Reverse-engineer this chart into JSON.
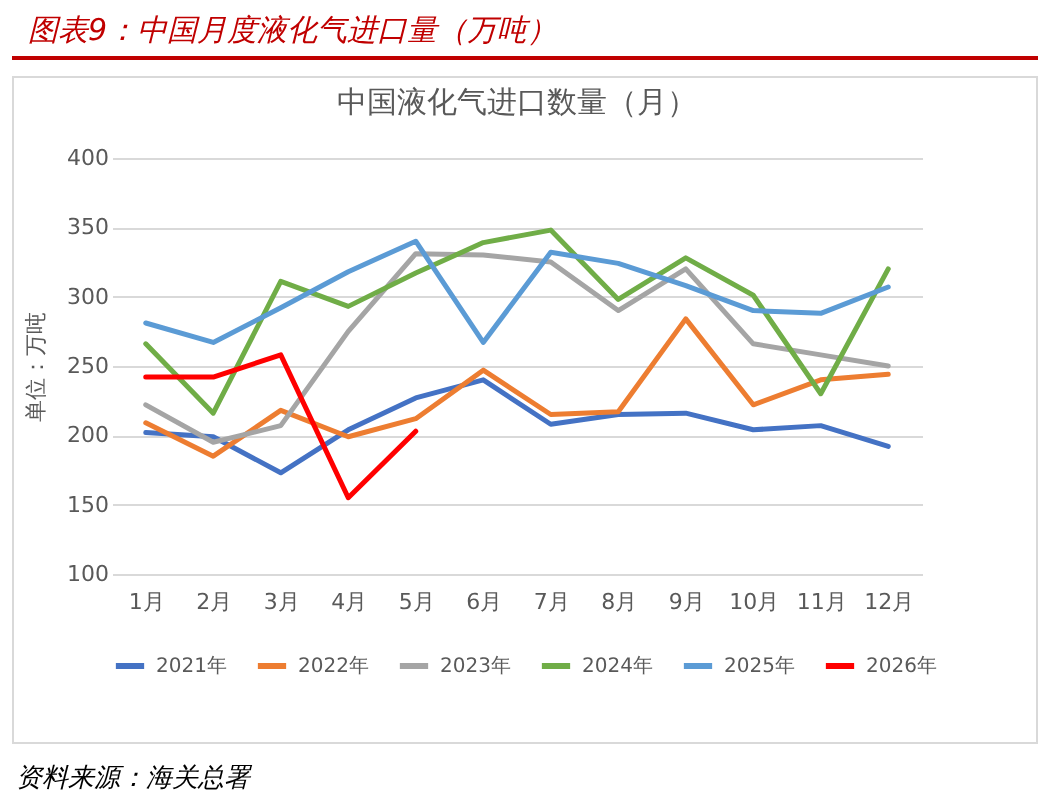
{
  "chart_data": {
    "type": "line",
    "title": "中国液化气进口数量（月）",
    "subtitle": "图表9：中国月度液化气进口量（万吨）",
    "ylabel": "单位：万吨",
    "annotations": [
      "资料来源：海关总署"
    ],
    "categories": [
      "1月",
      "2月",
      "3月",
      "4月",
      "5月",
      "6月",
      "7月",
      "8月",
      "9月",
      "10月",
      "11月",
      "12月"
    ],
    "series": [
      {
        "name": "2021年",
        "color": "#4472c4",
        "values": [
          202,
          199,
          173,
          204,
          227,
          240,
          208,
          215,
          216,
          204,
          207,
          192
        ]
      },
      {
        "name": "2022年",
        "color": "#ed7d31",
        "values": [
          209,
          185,
          218,
          199,
          212,
          247,
          215,
          217,
          284,
          222,
          240,
          244
        ]
      },
      {
        "name": "2023年",
        "color": "#a5a5a5",
        "values": [
          222,
          195,
          207,
          275,
          331,
          330,
          325,
          290,
          320,
          266,
          258,
          250
        ]
      },
      {
        "name": "2024年",
        "color": "#70ad47",
        "values": [
          266,
          216,
          311,
          293,
          317,
          339,
          348,
          298,
          328,
          301,
          230,
          320
        ]
      },
      {
        "name": "2025年",
        "color": "#5b9bd5",
        "values": [
          281,
          267,
          292,
          318,
          340,
          267,
          332,
          324,
          308,
          290,
          288,
          307
        ]
      },
      {
        "name": "2026年",
        "color": "#ff0000",
        "values": [
          242,
          242,
          258,
          155,
          203,
          null,
          null,
          null,
          null,
          null,
          null,
          null
        ]
      }
    ],
    "ylim": [
      100,
      400
    ],
    "yticks": [
      100,
      150,
      200,
      250,
      300,
      350,
      400
    ],
    "grid": "y",
    "legend": "bottom",
    "marker": "none",
    "line_style": "solid"
  }
}
